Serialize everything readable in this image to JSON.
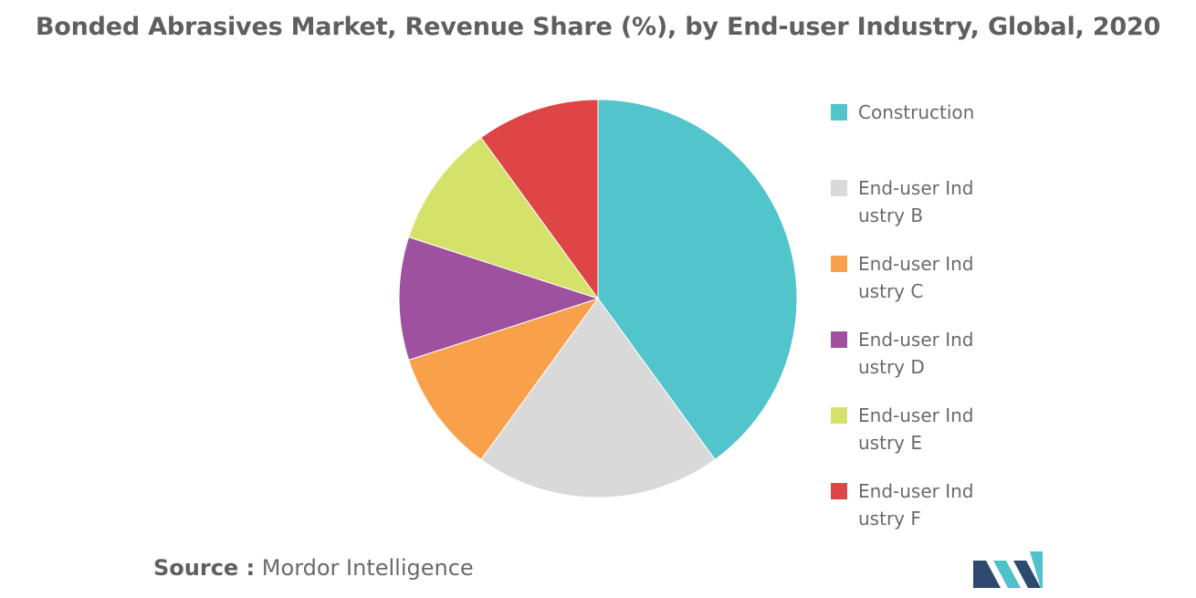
{
  "chart_data": {
    "type": "pie",
    "title": "Bonded Abrasives Market, Revenue Share (%), by End-user Industry, Global, 2020",
    "categories": [
      "Construction",
      "End-user Industry B",
      "End-user Industry C",
      "End-user Industry D",
      "End-user Industry E",
      "End-user Industry F"
    ],
    "values": [
      40,
      20,
      10,
      10,
      10,
      10
    ],
    "colors": [
      "#52C4CB",
      "#D9D9D9",
      "#F9A04A",
      "#9D519E",
      "#D4E26A",
      "#DE4547"
    ],
    "legend_position": "right"
  },
  "source": {
    "prefix": "Source :",
    "text": "Mordor Intelligence"
  },
  "logo": {
    "colors": [
      "#2D4A6E",
      "#4FC1CB"
    ]
  }
}
